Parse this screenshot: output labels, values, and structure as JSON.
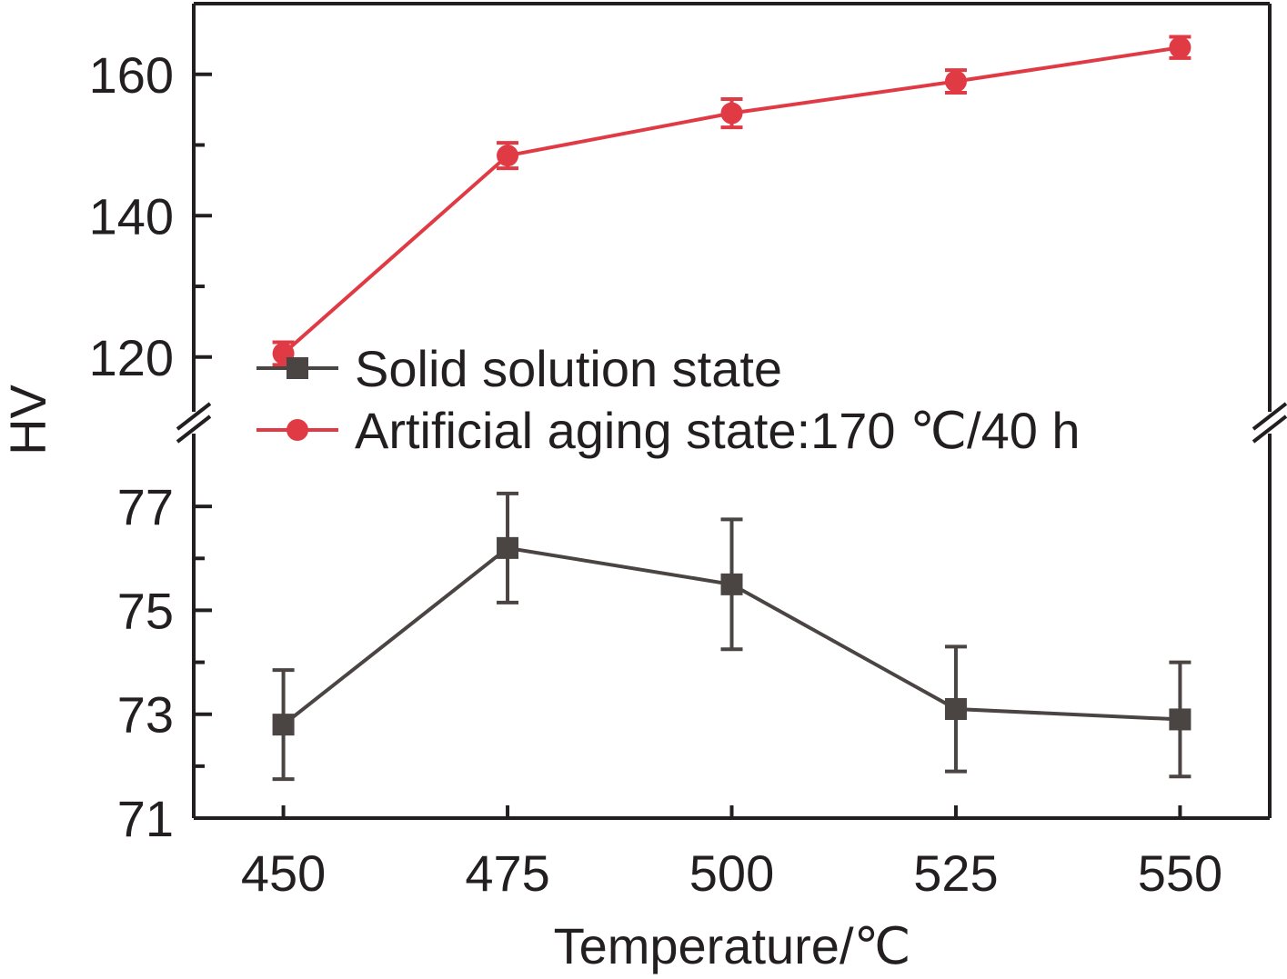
{
  "chart_data": {
    "type": "line",
    "xlabel": "Temperature/℃",
    "ylabel": "HV",
    "x": [
      450,
      475,
      500,
      525,
      550
    ],
    "xlim": [
      440,
      560
    ],
    "xticks": [
      "450",
      "475",
      "500",
      "525",
      "550"
    ],
    "y_axis_break": true,
    "y_segments": [
      {
        "range": [
          71,
          78
        ],
        "ticks": [
          "71",
          "73",
          "75",
          "77"
        ],
        "minor_ticks": [
          72,
          74,
          76
        ]
      },
      {
        "range": [
          112,
          170
        ],
        "ticks": [
          "120",
          "140",
          "160"
        ],
        "minor_ticks": [
          130,
          150
        ]
      }
    ],
    "series": [
      {
        "name": "Solid solution state",
        "color": "#4a4443",
        "marker": "square",
        "y": [
          72.8,
          76.2,
          75.5,
          73.1,
          72.9
        ],
        "yerr": [
          1.05,
          1.05,
          1.25,
          1.2,
          1.1
        ]
      },
      {
        "name": "Artificial aging state:170 ℃/40 h",
        "color": "#e03a45",
        "marker": "circle",
        "y": [
          120.5,
          148.5,
          154.5,
          159.0,
          163.8
        ],
        "yerr": [
          1.6,
          1.8,
          2.0,
          1.6,
          1.5
        ]
      }
    ],
    "legend_position": "center-left"
  }
}
